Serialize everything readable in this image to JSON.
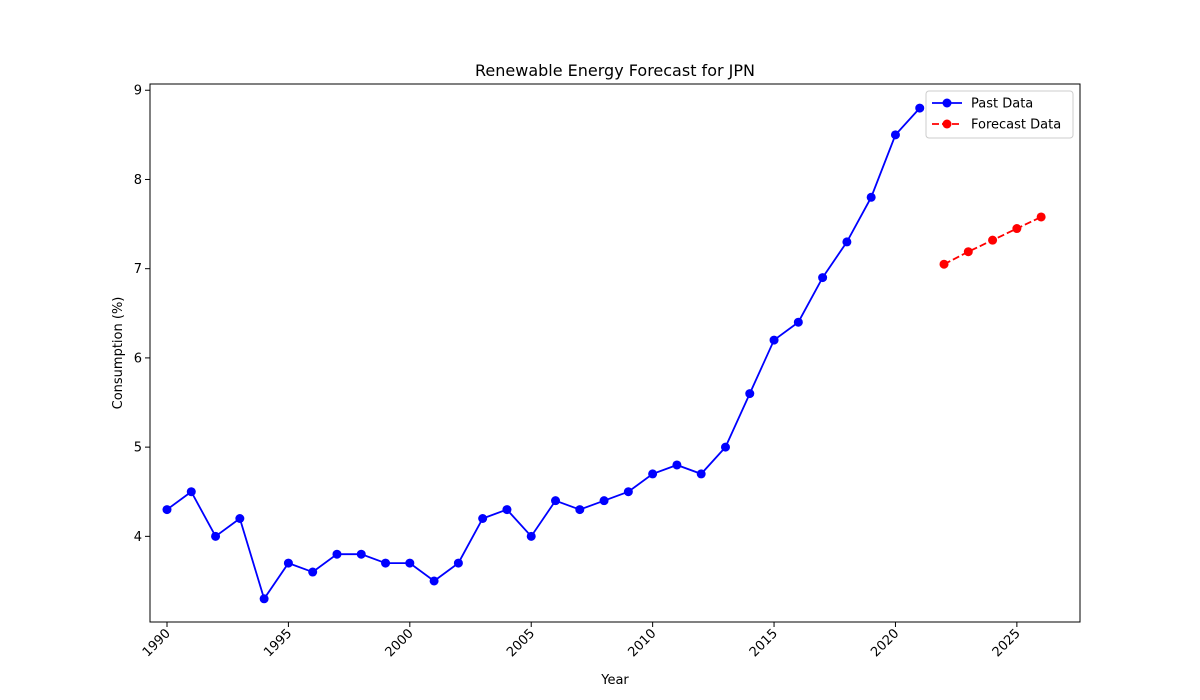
{
  "chart_data": {
    "type": "line",
    "title": "Renewable Energy Forecast for JPN",
    "xlabel": "Year",
    "ylabel": "Consumption (%)",
    "xlim": [
      1989.3,
      2027.6
    ],
    "ylim": [
      3.04,
      9.07
    ],
    "x_ticks": [
      1990,
      1995,
      2000,
      2005,
      2010,
      2015,
      2020,
      2025
    ],
    "y_ticks": [
      4,
      5,
      6,
      7,
      8,
      9
    ],
    "grid": false,
    "legend_position": "top-right",
    "series": [
      {
        "name": "Past Data",
        "color": "#0000ff",
        "line_style": "solid",
        "marker": "circle",
        "x": [
          1990,
          1991,
          1992,
          1993,
          1994,
          1995,
          1996,
          1997,
          1998,
          1999,
          2000,
          2001,
          2002,
          2003,
          2004,
          2005,
          2006,
          2007,
          2008,
          2009,
          2010,
          2011,
          2012,
          2013,
          2014,
          2015,
          2016,
          2017,
          2018,
          2019,
          2020,
          2021
        ],
        "y": [
          4.3,
          4.5,
          4.0,
          4.2,
          3.3,
          3.7,
          3.6,
          3.8,
          3.8,
          3.7,
          3.7,
          3.5,
          3.7,
          4.2,
          4.3,
          4.0,
          4.4,
          4.3,
          4.4,
          4.5,
          4.7,
          4.8,
          4.7,
          5.0,
          5.6,
          6.2,
          6.4,
          6.9,
          7.3,
          7.8,
          8.5,
          8.8
        ]
      },
      {
        "name": "Forecast Data",
        "color": "#ff0000",
        "line_style": "dashed",
        "marker": "circle",
        "x": [
          2022,
          2023,
          2024,
          2025,
          2026
        ],
        "y": [
          7.05,
          7.19,
          7.32,
          7.45,
          7.58
        ]
      }
    ]
  }
}
